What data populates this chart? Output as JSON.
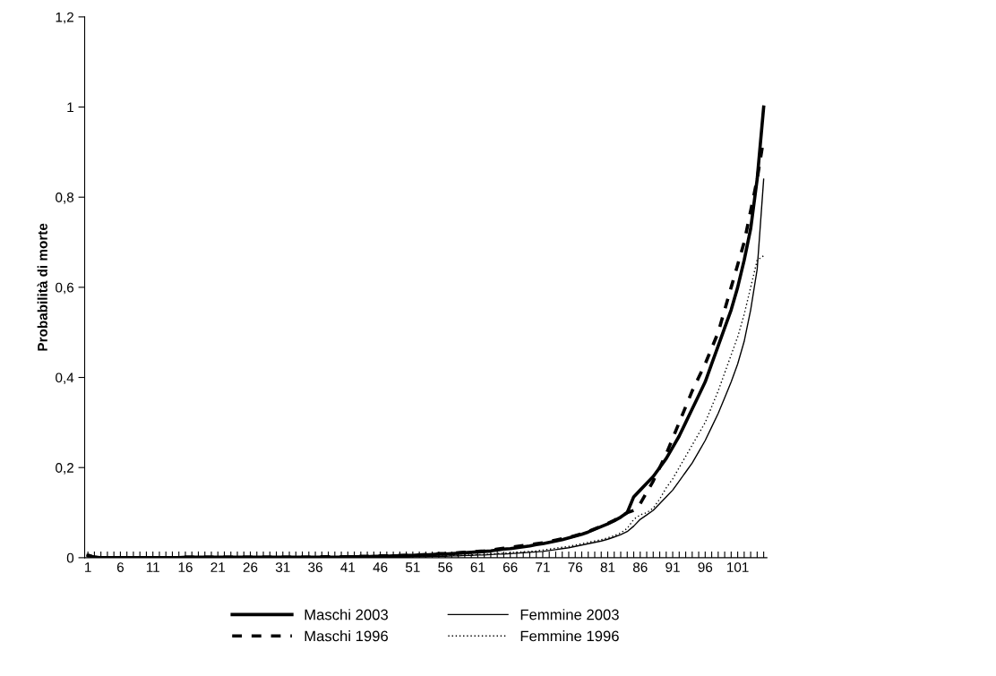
{
  "chart_data": {
    "type": "line",
    "ylabel": "Probabilità di morte",
    "categories": [
      "1",
      null,
      null,
      null,
      null,
      "6",
      null,
      null,
      null,
      null,
      "11",
      null,
      null,
      null,
      null,
      "16",
      null,
      null,
      null,
      null,
      "21",
      null,
      null,
      null,
      null,
      "26",
      null,
      null,
      null,
      null,
      "31",
      null,
      null,
      null,
      null,
      "36",
      null,
      null,
      null,
      null,
      "41",
      null,
      null,
      null,
      null,
      "46",
      null,
      null,
      null,
      null,
      "51",
      null,
      null,
      null,
      null,
      "56",
      null,
      null,
      null,
      null,
      "61",
      null,
      null,
      null,
      null,
      "66",
      null,
      null,
      null,
      null,
      "71",
      null,
      null,
      null,
      null,
      "76",
      null,
      null,
      null,
      null,
      "81",
      null,
      null,
      null,
      null,
      "86",
      null,
      null,
      null,
      null,
      "91",
      null,
      null,
      null,
      null,
      "96",
      null,
      null,
      null,
      null,
      "101",
      null,
      null,
      null,
      null
    ],
    "ylim": [
      0,
      1.2
    ],
    "yticks": [
      0,
      {
        "value": 0.2,
        "label": "0,2"
      },
      {
        "value": 0.4,
        "label": "0,4"
      },
      {
        "value": 0.6,
        "label": "0,6"
      },
      {
        "value": 0.8,
        "label": "0,8"
      },
      1,
      {
        "value": 1.2,
        "label": "1,2"
      }
    ],
    "grid": false,
    "legend": "bottom",
    "marker": "none",
    "series": [
      {
        "name": "Maschi 2003",
        "color": "#000000",
        "line_style": "solid",
        "values": [
          0.005,
          0.001,
          0,
          0,
          0,
          0,
          0,
          0,
          0,
          0,
          0,
          0,
          0,
          0,
          0,
          0.001,
          0.001,
          0.001,
          0.001,
          0.001,
          0.001,
          0.001,
          0.001,
          0.001,
          0.001,
          0.001,
          0.001,
          0.001,
          0.001,
          0.001,
          0.001,
          0.001,
          0.001,
          0.001,
          0.001,
          0.001,
          0.001,
          0.001,
          0.001,
          0.001,
          0.002,
          0.002,
          0.002,
          0.002,
          0.003,
          0.003,
          0.003,
          0.004,
          0.004,
          0.005,
          0.005,
          0.006,
          0.006,
          0.007,
          0.008,
          0.008,
          0.009,
          0.01,
          0.011,
          0.012,
          0.013,
          0.014,
          0.015,
          0.017,
          0.019,
          0.02,
          0.022,
          0.024,
          0.026,
          0.029,
          0.031,
          0.034,
          0.037,
          0.04,
          0.044,
          0.048,
          0.052,
          0.057,
          0.063,
          0.069,
          0.075,
          0.082,
          0.09,
          0.1,
          0.135,
          0.15,
          0.165,
          0.18,
          0.2,
          0.22,
          0.245,
          0.27,
          0.3,
          0.33,
          0.36,
          0.39,
          0.43,
          0.47,
          0.51,
          0.55,
          0.6,
          0.66,
          0.73,
          0.84,
          1.0
        ]
      },
      {
        "name": "Femmine 2003",
        "color": "#000000",
        "line_style": "solid",
        "values": [
          0.004,
          0,
          0,
          0,
          0,
          0,
          0,
          0,
          0,
          0,
          0,
          0,
          0,
          0,
          0,
          0,
          0,
          0,
          0,
          0,
          0,
          0,
          0,
          0,
          0,
          0,
          0,
          0,
          0,
          0,
          0.001,
          0.001,
          0.001,
          0.001,
          0.001,
          0.001,
          0.001,
          0.001,
          0.001,
          0.001,
          0.001,
          0.001,
          0.001,
          0.001,
          0.001,
          0.001,
          0.001,
          0.001,
          0.001,
          0.001,
          0.002,
          0.002,
          0.002,
          0.003,
          0.003,
          0.003,
          0.004,
          0.004,
          0.005,
          0.005,
          0.006,
          0.006,
          0.007,
          0.008,
          0.008,
          0.009,
          0.01,
          0.011,
          0.012,
          0.013,
          0.014,
          0.016,
          0.018,
          0.02,
          0.022,
          0.025,
          0.028,
          0.031,
          0.034,
          0.037,
          0.041,
          0.046,
          0.051,
          0.058,
          0.07,
          0.085,
          0.095,
          0.105,
          0.12,
          0.135,
          0.15,
          0.17,
          0.19,
          0.21,
          0.235,
          0.26,
          0.29,
          0.32,
          0.355,
          0.39,
          0.43,
          0.48,
          0.55,
          0.64,
          0.84
        ]
      },
      {
        "name": "Maschi 1996",
        "color": "#000000",
        "line_style": "dashed",
        "values": [
          0.006,
          0.001,
          0,
          0,
          0,
          0,
          0,
          0,
          0,
          0,
          0,
          0,
          0,
          0,
          0,
          0.001,
          0.001,
          0.001,
          0.001,
          0.001,
          0.001,
          0.001,
          0.001,
          0.001,
          0.001,
          0.001,
          0.001,
          0.001,
          0.001,
          0.001,
          0.001,
          0.001,
          0.001,
          0.001,
          0.001,
          0.002,
          0.002,
          0.002,
          0.002,
          0.002,
          0.002,
          0.002,
          0.003,
          0.003,
          0.003,
          0.004,
          0.004,
          0.004,
          0.005,
          0.005,
          0.006,
          0.006,
          0.007,
          0.008,
          0.009,
          0.009,
          0.01,
          0.011,
          0.012,
          0.013,
          0.014,
          0.015,
          0.017,
          0.019,
          0.021,
          0.023,
          0.025,
          0.027,
          0.029,
          0.031,
          0.033,
          0.036,
          0.039,
          0.042,
          0.045,
          0.049,
          0.053,
          0.058,
          0.064,
          0.07,
          0.076,
          0.083,
          0.091,
          0.1,
          0.105,
          0.12,
          0.145,
          0.17,
          0.2,
          0.23,
          0.265,
          0.3,
          0.335,
          0.37,
          0.4,
          0.43,
          0.465,
          0.5,
          0.55,
          0.6,
          0.65,
          0.7,
          0.77,
          0.84,
          0.93
        ]
      },
      {
        "name": "Femmine 1996",
        "color": "#000000",
        "line_style": "dotted",
        "values": [
          0.005,
          0,
          0,
          0,
          0,
          0,
          0,
          0,
          0,
          0,
          0,
          0,
          0,
          0,
          0,
          0,
          0,
          0,
          0,
          0,
          0,
          0,
          0,
          0,
          0,
          0,
          0,
          0,
          0,
          0,
          0.001,
          0.001,
          0.001,
          0.001,
          0.001,
          0.001,
          0.001,
          0.001,
          0.001,
          0.001,
          0.001,
          0.001,
          0.001,
          0.001,
          0.001,
          0.001,
          0.002,
          0.002,
          0.002,
          0.002,
          0.002,
          0.003,
          0.003,
          0.003,
          0.004,
          0.004,
          0.005,
          0.005,
          0.006,
          0.006,
          0.007,
          0.007,
          0.008,
          0.009,
          0.01,
          0.011,
          0.012,
          0.013,
          0.014,
          0.015,
          0.017,
          0.019,
          0.021,
          0.023,
          0.025,
          0.028,
          0.031,
          0.034,
          0.037,
          0.04,
          0.044,
          0.049,
          0.055,
          0.065,
          0.085,
          0.095,
          0.1,
          0.11,
          0.13,
          0.155,
          0.175,
          0.2,
          0.225,
          0.25,
          0.275,
          0.3,
          0.335,
          0.37,
          0.41,
          0.45,
          0.49,
          0.54,
          0.6,
          0.66,
          0.67
        ]
      }
    ]
  }
}
